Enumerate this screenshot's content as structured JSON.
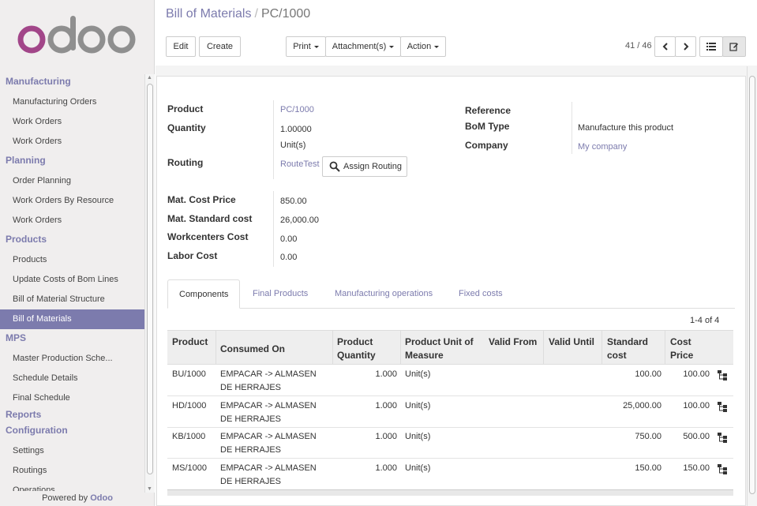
{
  "app": {
    "brand": "odoo",
    "powered_by_prefix": "Powered by",
    "powered_by_brand": "Odoo"
  },
  "sidebar": {
    "sections": [
      {
        "title": "Manufacturing",
        "items": [
          "Manufacturing Orders",
          "Work Orders",
          "Work Orders"
        ]
      },
      {
        "title": "Planning",
        "items": [
          "Order Planning",
          "Work Orders By Resource",
          "Work Orders"
        ]
      },
      {
        "title": "Products",
        "items": [
          "Products",
          "Update Costs of Bom Lines",
          "Bill of Material Structure",
          "Bill of Materials"
        ]
      },
      {
        "title": "MPS",
        "items": [
          "Master Production Sche...",
          "Schedule Details",
          "Final Schedule"
        ]
      },
      {
        "title": "Reports",
        "items": []
      },
      {
        "title": "Configuration",
        "items": [
          "Settings",
          "Routings",
          "Operations"
        ]
      }
    ],
    "active_item": "Bill of Materials"
  },
  "breadcrumb": {
    "parent": "Bill of Materials",
    "separator": "/",
    "current": "PC/1000"
  },
  "toolbar": {
    "edit": "Edit",
    "create": "Create",
    "print": "Print",
    "attachments": "Attachment(s)",
    "action": "Action",
    "pager": "41 / 46"
  },
  "form": {
    "product_label": "Product",
    "product_value": "PC/1000",
    "quantity_label": "Quantity",
    "quantity_value": "1.00000",
    "quantity_uom": "Unit(s)",
    "routing_label": "Routing",
    "routing_value": "RouteTest",
    "assign_routing": "Assign Routing",
    "reference_label": "Reference",
    "reference_value": "",
    "bom_type_label": "BoM Type",
    "bom_type_value": "Manufacture this product",
    "company_label": "Company",
    "company_value": "My company",
    "mat_cost_label": "Mat. Cost Price",
    "mat_cost_value": "850.00",
    "mat_std_label": "Mat. Standard cost",
    "mat_std_value": "26,000.00",
    "wc_cost_label": "Workcenters Cost",
    "wc_cost_value": "0.00",
    "labor_cost_label": "Labor Cost",
    "labor_cost_value": "0.00"
  },
  "tabs": [
    "Components",
    "Final Products",
    "Manufacturing operations",
    "Fixed costs"
  ],
  "table": {
    "record_count": "1-4 of 4",
    "headers": {
      "product": "Product",
      "consumed_on": "Consumed On",
      "product_quantity": "Product Quantity",
      "product_uom": "Product Unit of Measure",
      "valid_from": "Valid From",
      "valid_until": "Valid Until",
      "standard_cost": "Standard cost",
      "cost_price": "Cost Price"
    },
    "rows": [
      {
        "product": "BU/1000",
        "consumed_on": "EMPACAR -> ALMASEN DE HERRAJES",
        "qty": "1.000",
        "uom": "Unit(s)",
        "std": "100.00",
        "cost": "100.00"
      },
      {
        "product": "HD/1000",
        "consumed_on": "EMPACAR -> ALMASEN DE HERRAJES",
        "qty": "1.000",
        "uom": "Unit(s)",
        "std": "25,000.00",
        "cost": "100.00"
      },
      {
        "product": "KB/1000",
        "consumed_on": "EMPACAR -> ALMASEN DE HERRAJES",
        "qty": "1.000",
        "uom": "Unit(s)",
        "std": "750.00",
        "cost": "500.00"
      },
      {
        "product": "MS/1000",
        "consumed_on": "EMPACAR -> ALMASEN DE HERRAJES",
        "qty": "1.000",
        "uom": "Unit(s)",
        "std": "150.00",
        "cost": "150.00"
      }
    ]
  },
  "colors": {
    "accent": "#7c7bad",
    "logo_o": "#a24689",
    "logo_grey": "#8f8f8f"
  },
  "icons": [
    "search-icon",
    "chevron-left-icon",
    "chevron-right-icon",
    "list-view-icon",
    "form-view-icon",
    "bom-structure-icon"
  ]
}
